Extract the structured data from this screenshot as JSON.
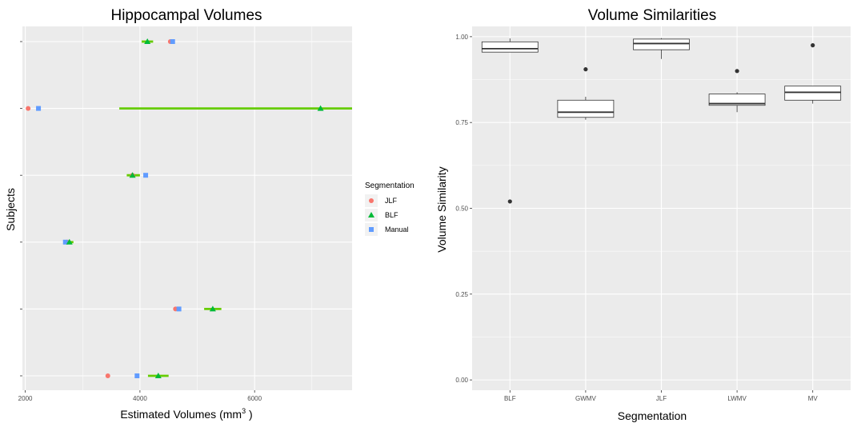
{
  "chart_data": [
    {
      "type": "scatter",
      "title": "Hippocampal Volumes",
      "xlabel_prefix": "Estimated Volumes (mm",
      "xlabel_sup": "3",
      "xlabel_suffix": " )",
      "ylabel": "Subjects",
      "xlim": [
        1950,
        7700
      ],
      "xticks": [
        2000,
        4000,
        6000
      ],
      "subjects": 6,
      "legend": {
        "title": "Segmentation",
        "placement": "right",
        "entries": [
          {
            "label": "JLF",
            "color": "#F8766D",
            "shape": "circle"
          },
          {
            "label": "BLF",
            "color": "#00BA38",
            "shape": "triangle"
          },
          {
            "label": "Manual",
            "color": "#619CFF",
            "shape": "square"
          }
        ]
      },
      "blf_interval_color": "#66CC00",
      "rows": [
        {
          "jlf": 4530,
          "blf": 4130,
          "manual": 4570,
          "blf_lo": 4030,
          "blf_hi": 4230
        },
        {
          "jlf": 2050,
          "blf": 7150,
          "manual": 2230,
          "blf_lo": 3640,
          "blf_hi": 7700
        },
        {
          "jlf": 3870,
          "blf": 3870,
          "manual": 4100,
          "blf_lo": 3770,
          "blf_hi": 4000
        },
        {
          "jlf": 2730,
          "blf": 2770,
          "manual": 2700,
          "blf_lo": 2710,
          "blf_hi": 2840
        },
        {
          "jlf": 4620,
          "blf": 5270,
          "manual": 4680,
          "blf_lo": 5120,
          "blf_hi": 5420
        },
        {
          "jlf": 3440,
          "blf": 4320,
          "manual": 3950,
          "blf_lo": 4140,
          "blf_hi": 4500
        }
      ]
    },
    {
      "type": "box",
      "title": "Volume Similarities",
      "xlabel": "Segmentation",
      "ylabel": "Volume Similarity",
      "categories": [
        "BLF",
        "GWMV",
        "JLF",
        "LWMV",
        "MV"
      ],
      "ylim": [
        -0.03,
        1.03
      ],
      "yticks": [
        0.0,
        0.25,
        0.5,
        0.75,
        1.0
      ],
      "ytick_labels": [
        "0.00",
        "0.25",
        "0.50",
        "0.75",
        "1.00"
      ],
      "boxes": [
        {
          "category": "BLF",
          "whisker_low": 0.955,
          "q1": 0.955,
          "median": 0.965,
          "q3": 0.985,
          "whisker_high": 0.995,
          "outliers": [
            0.52
          ]
        },
        {
          "category": "GWMV",
          "whisker_low": 0.758,
          "q1": 0.765,
          "median": 0.78,
          "q3": 0.815,
          "whisker_high": 0.825,
          "outliers": [
            0.905
          ]
        },
        {
          "category": "JLF",
          "whisker_low": 0.935,
          "q1": 0.962,
          "median": 0.98,
          "q3": 0.993,
          "whisker_high": 0.996,
          "outliers": []
        },
        {
          "category": "LWMV",
          "whisker_low": 0.78,
          "q1": 0.8,
          "median": 0.805,
          "q3": 0.833,
          "whisker_high": 0.838,
          "outliers": [
            0.9
          ]
        },
        {
          "category": "MV",
          "whisker_low": 0.805,
          "q1": 0.815,
          "median": 0.838,
          "q3": 0.856,
          "whisker_high": 0.856,
          "outliers": [
            0.975
          ]
        }
      ]
    }
  ]
}
